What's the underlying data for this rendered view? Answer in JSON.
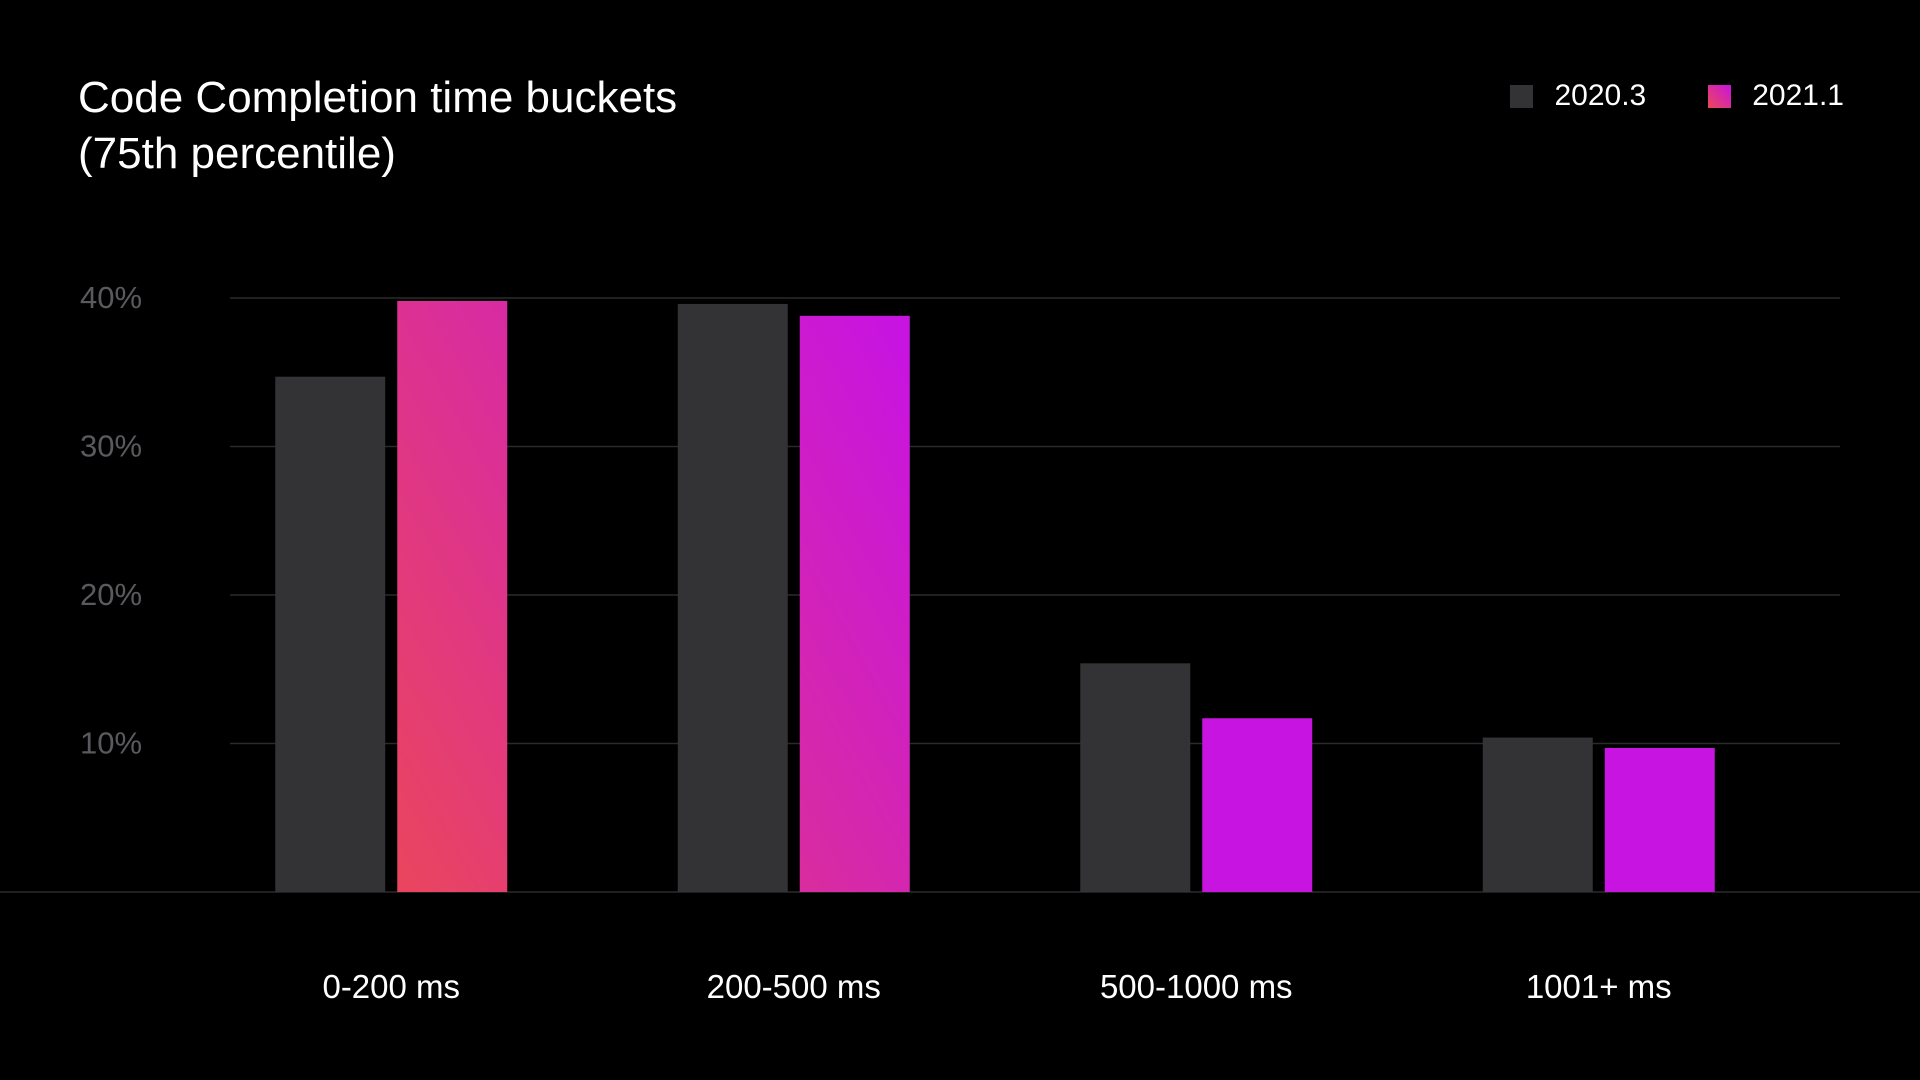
{
  "chart_data": {
    "type": "bar",
    "title_lines": [
      "Code Completion time buckets",
      "(75th percentile)"
    ],
    "categories": [
      "0-200 ms",
      "200-500 ms",
      "500-1000 ms",
      "1001+ ms"
    ],
    "series": [
      {
        "name": "2020.3",
        "values": [
          34.7,
          39.6,
          15.4,
          10.4
        ],
        "color": "#333336"
      },
      {
        "name": "2021.1",
        "values": [
          39.8,
          38.8,
          11.7,
          9.7
        ],
        "color": "#C814E0",
        "gradient": [
          "#EC4855",
          "#C814E0"
        ]
      }
    ],
    "ylim": [
      0,
      40
    ],
    "yticks": [
      10,
      20,
      30,
      40
    ],
    "ytick_labels": [
      "10%",
      "20%",
      "30%",
      "40%"
    ],
    "grid": true,
    "legend_position": "top-right"
  }
}
